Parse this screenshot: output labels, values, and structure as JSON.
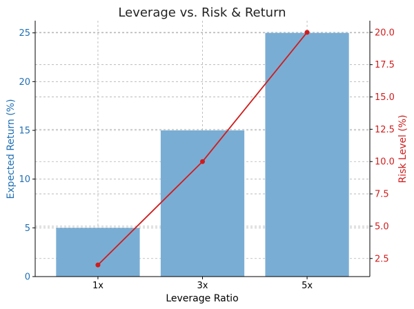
{
  "chart_data": {
    "type": "bar",
    "title": "Leverage vs. Risk & Return",
    "xlabel": "Leverage Ratio",
    "ylabel": "Expected Return (%)",
    "y2label": "Risk Level (%)",
    "categories": [
      "1x",
      "3x",
      "5x"
    ],
    "ylim": [
      0,
      26.25
    ],
    "y2lim": [
      1.1,
      20.9
    ],
    "yticks": [
      0,
      5,
      10,
      15,
      20,
      25
    ],
    "y2ticks": [
      2.5,
      5.0,
      7.5,
      10.0,
      12.5,
      15.0,
      17.5,
      20.0
    ],
    "grid": true,
    "series": [
      {
        "name": "Expected Return (%)",
        "type": "bar",
        "axis": "left",
        "values": [
          5,
          15,
          25
        ],
        "color": "#7aadd4"
      },
      {
        "name": "Risk Level (%)",
        "type": "line",
        "axis": "right",
        "values": [
          2,
          10,
          20
        ],
        "color": "#d01c1c"
      }
    ]
  },
  "colors": {
    "left_axis": "#1f6fb4",
    "right_axis": "#d01c1c",
    "bar": "#7aadd4",
    "line": "#d01c1c"
  }
}
